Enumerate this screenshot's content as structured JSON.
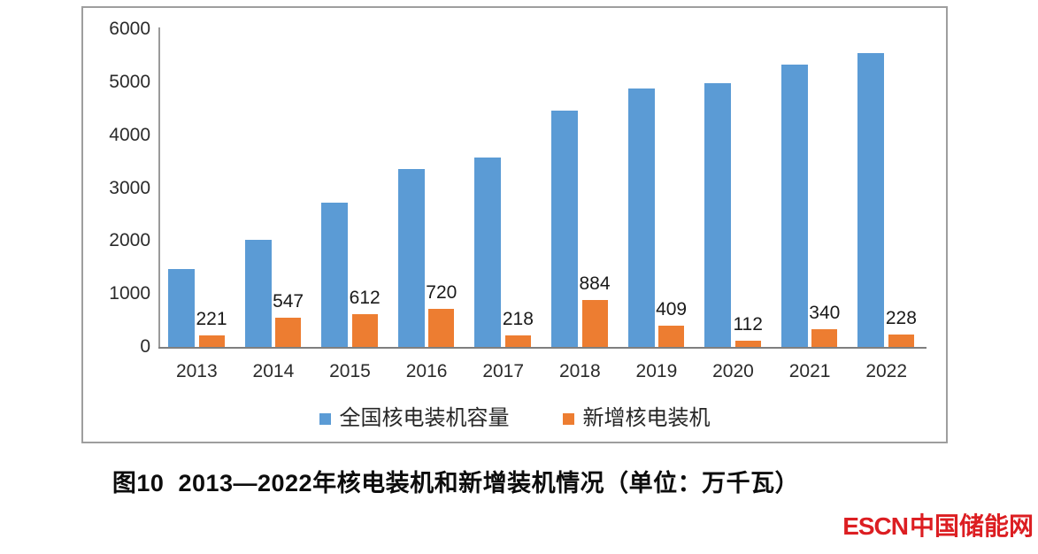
{
  "chart_data": {
    "type": "bar",
    "categories": [
      "2013",
      "2014",
      "2015",
      "2016",
      "2017",
      "2018",
      "2019",
      "2020",
      "2021",
      "2022"
    ],
    "series": [
      {
        "name": "全国核电装机容量",
        "color": "#5B9BD5",
        "values": [
          1466,
          2030,
          2717,
          3364,
          3582,
          4466,
          4874,
          4989,
          5326,
          5553
        ],
        "data_labels": false
      },
      {
        "name": "新增核电装机",
        "color": "#ED7D31",
        "values": [
          221,
          547,
          612,
          720,
          218,
          884,
          409,
          112,
          340,
          228
        ],
        "data_labels": true
      }
    ],
    "ylim": [
      0,
      6000
    ],
    "yticks": [
      0,
      1000,
      2000,
      3000,
      4000,
      5000,
      6000
    ],
    "grid": false,
    "legend_position": "bottom",
    "xlabel": "",
    "ylabel": ""
  },
  "caption": {
    "text": "图10  2013—2022年核电装机和新增装机情况（单位：万千瓦）"
  },
  "watermark": {
    "text": "ESCN中国储能网",
    "latin": "ESCN",
    "cjk": "中国储能网",
    "color": "#dc1e22"
  },
  "colors": {
    "capacity_bar": "#5B9BD5",
    "new_bar": "#ED7D31",
    "frame_border": "#9e9e9e",
    "axis_line": "#7f7f7f"
  }
}
